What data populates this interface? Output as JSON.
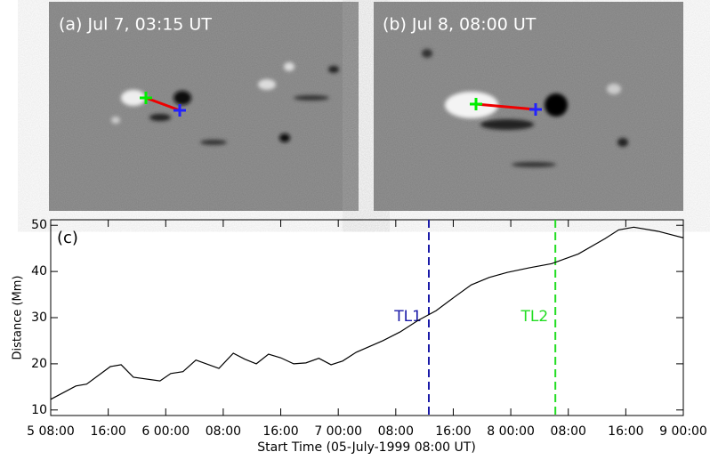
{
  "panels": [
    {
      "label": "(a) Jul 7, 03:15 UT"
    },
    {
      "label": "(b) Jul 8, 08:00 UT"
    }
  ],
  "chart_data": {
    "type": "line",
    "panel_label": "(c)",
    "ylabel": "Distance (Mm)",
    "xlabel": "Start Time (05-July-1999 08:00 UT)",
    "x": [
      0,
      3.5,
      5,
      8.3,
      9.8,
      11.5,
      15.2,
      16.7,
      18.4,
      20.2,
      23.4,
      25.4,
      27,
      28.6,
      30.3,
      32,
      33.8,
      35.5,
      37.3,
      39,
      40.6,
      42.5,
      46.2,
      48.6,
      51.1,
      53.6,
      56.1,
      58.5,
      61,
      63.5,
      66.6,
      69.7,
      73.4,
      77.1,
      79,
      81.1,
      84.5,
      88
    ],
    "series": [
      {
        "color": "#000000",
        "values": [
          12.3,
          15.2,
          15.6,
          19.4,
          19.8,
          17.1,
          16.3,
          17.9,
          18.3,
          20.8,
          19.0,
          22.3,
          21.0,
          20.0,
          22.1,
          21.3,
          20.0,
          20.2,
          21.2,
          19.8,
          20.6,
          22.5,
          25.0,
          26.9,
          29.4,
          31.5,
          34.4,
          37.1,
          38.7,
          39.8,
          40.8,
          41.7,
          43.8,
          47.1,
          49.0,
          49.6,
          48.7,
          47.3
        ]
      }
    ],
    "xlim": [
      0,
      88
    ],
    "ylim": [
      8.8,
      51.2
    ],
    "xticks": [
      {
        "value": 0,
        "label": "5 08:00"
      },
      {
        "value": 8,
        "label": "16:00"
      },
      {
        "value": 16,
        "label": "6 00:00"
      },
      {
        "value": 24,
        "label": "08:00"
      },
      {
        "value": 32,
        "label": "16:00"
      },
      {
        "value": 40,
        "label": "7 00:00"
      },
      {
        "value": 48,
        "label": "08:00"
      },
      {
        "value": 56,
        "label": "16:00"
      },
      {
        "value": 64,
        "label": "8 00:00"
      },
      {
        "value": 72,
        "label": "08:00"
      },
      {
        "value": 80,
        "label": "16:00"
      },
      {
        "value": 88,
        "label": "9 00:00"
      }
    ],
    "yticks": [
      10,
      20,
      30,
      40,
      50
    ],
    "markers": [
      {
        "label": "TL1",
        "x": 52.6,
        "color": "#1a1aa8"
      },
      {
        "label": "TL2",
        "x": 70.2,
        "color": "#22dd22"
      }
    ]
  }
}
